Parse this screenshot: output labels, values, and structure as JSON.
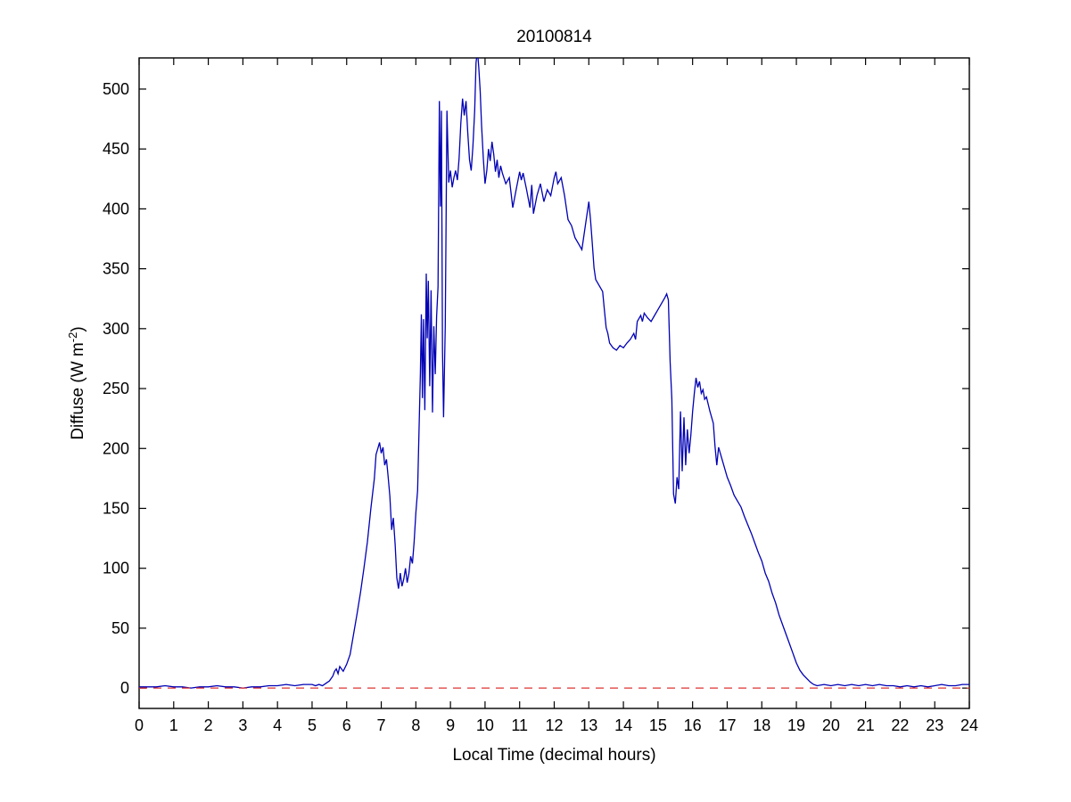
{
  "chart_data": {
    "type": "line",
    "title": "20100814",
    "xlabel": "Local Time (decimal hours)",
    "ylabel": "Diffuse (W m^-2)",
    "ylabel_parts": {
      "prefix": "Diffuse (W m",
      "sup": "-2",
      "suffix": ")"
    },
    "xlim": [
      0,
      24
    ],
    "ylim": [
      -17,
      526
    ],
    "xticks": [
      0,
      1,
      2,
      3,
      4,
      5,
      6,
      7,
      8,
      9,
      10,
      11,
      12,
      13,
      14,
      15,
      16,
      17,
      18,
      19,
      20,
      21,
      22,
      23,
      24
    ],
    "yticks": [
      0,
      50,
      100,
      150,
      200,
      250,
      300,
      350,
      400,
      450,
      500
    ],
    "grid": false,
    "legend": null,
    "colors": {
      "diffuse_line": "#0000b4",
      "zero_line": "#dd3333",
      "axes": "#000000"
    },
    "series": [
      {
        "name": "diffuse",
        "color": "#0000b4",
        "style": "solid",
        "points": [
          [
            0,
            1
          ],
          [
            0.25,
            1
          ],
          [
            0.5,
            1
          ],
          [
            0.75,
            2
          ],
          [
            1,
            1
          ],
          [
            1.25,
            1
          ],
          [
            1.5,
            0
          ],
          [
            1.75,
            1
          ],
          [
            2,
            1
          ],
          [
            2.25,
            2
          ],
          [
            2.5,
            1
          ],
          [
            2.75,
            1
          ],
          [
            3,
            0
          ],
          [
            3.25,
            1
          ],
          [
            3.5,
            1
          ],
          [
            3.75,
            2
          ],
          [
            4,
            2
          ],
          [
            4.25,
            3
          ],
          [
            4.5,
            2
          ],
          [
            4.75,
            3
          ],
          [
            5,
            3
          ],
          [
            5.1,
            2
          ],
          [
            5.2,
            3
          ],
          [
            5.3,
            2
          ],
          [
            5.4,
            4
          ],
          [
            5.5,
            6
          ],
          [
            5.6,
            10
          ],
          [
            5.65,
            14
          ],
          [
            5.7,
            16
          ],
          [
            5.75,
            12
          ],
          [
            5.8,
            18
          ],
          [
            5.85,
            16
          ],
          [
            5.9,
            14
          ],
          [
            6,
            20
          ],
          [
            6.1,
            28
          ],
          [
            6.2,
            45
          ],
          [
            6.3,
            62
          ],
          [
            6.4,
            80
          ],
          [
            6.5,
            100
          ],
          [
            6.6,
            122
          ],
          [
            6.7,
            150
          ],
          [
            6.8,
            175
          ],
          [
            6.85,
            195
          ],
          [
            6.9,
            200
          ],
          [
            6.95,
            205
          ],
          [
            7,
            196
          ],
          [
            7.05,
            201
          ],
          [
            7.1,
            186
          ],
          [
            7.15,
            191
          ],
          [
            7.2,
            176
          ],
          [
            7.25,
            160
          ],
          [
            7.3,
            132
          ],
          [
            7.35,
            142
          ],
          [
            7.4,
            120
          ],
          [
            7.45,
            92
          ],
          [
            7.5,
            83
          ],
          [
            7.55,
            96
          ],
          [
            7.6,
            85
          ],
          [
            7.65,
            91
          ],
          [
            7.7,
            100
          ],
          [
            7.75,
            88
          ],
          [
            7.8,
            96
          ],
          [
            7.85,
            110
          ],
          [
            7.9,
            104
          ],
          [
            7.95,
            122
          ],
          [
            8,
            146
          ],
          [
            8.05,
            165
          ],
          [
            8.1,
            225
          ],
          [
            8.13,
            262
          ],
          [
            8.16,
            312
          ],
          [
            8.19,
            242
          ],
          [
            8.22,
            308
          ],
          [
            8.26,
            232
          ],
          [
            8.3,
            346
          ],
          [
            8.33,
            292
          ],
          [
            8.36,
            340
          ],
          [
            8.4,
            252
          ],
          [
            8.44,
            332
          ],
          [
            8.48,
            230
          ],
          [
            8.52,
            302
          ],
          [
            8.56,
            262
          ],
          [
            8.6,
            310
          ],
          [
            8.64,
            335
          ],
          [
            8.68,
            490
          ],
          [
            8.71,
            402
          ],
          [
            8.74,
            482
          ],
          [
            8.77,
            282
          ],
          [
            8.8,
            226
          ],
          [
            8.85,
            302
          ],
          [
            8.9,
            482
          ],
          [
            8.95,
            422
          ],
          [
            9,
            432
          ],
          [
            9.05,
            418
          ],
          [
            9.1,
            426
          ],
          [
            9.15,
            432
          ],
          [
            9.2,
            424
          ],
          [
            9.25,
            442
          ],
          [
            9.3,
            472
          ],
          [
            9.35,
            492
          ],
          [
            9.4,
            478
          ],
          [
            9.45,
            490
          ],
          [
            9.5,
            464
          ],
          [
            9.55,
            441
          ],
          [
            9.6,
            432
          ],
          [
            9.65,
            452
          ],
          [
            9.7,
            482
          ],
          [
            9.74,
            522
          ],
          [
            9.78,
            532
          ],
          [
            9.82,
            518
          ],
          [
            9.86,
            498
          ],
          [
            9.9,
            470
          ],
          [
            9.95,
            442
          ],
          [
            10,
            421
          ],
          [
            10.05,
            432
          ],
          [
            10.1,
            450
          ],
          [
            10.15,
            440
          ],
          [
            10.2,
            456
          ],
          [
            10.25,
            446
          ],
          [
            10.3,
            431
          ],
          [
            10.35,
            441
          ],
          [
            10.4,
            426
          ],
          [
            10.45,
            436
          ],
          [
            10.5,
            430
          ],
          [
            10.6,
            421
          ],
          [
            10.7,
            426
          ],
          [
            10.8,
            401
          ],
          [
            10.9,
            416
          ],
          [
            11,
            431
          ],
          [
            11.05,
            424
          ],
          [
            11.1,
            430
          ],
          [
            11.2,
            416
          ],
          [
            11.3,
            401
          ],
          [
            11.35,
            420
          ],
          [
            11.4,
            396
          ],
          [
            11.5,
            411
          ],
          [
            11.6,
            421
          ],
          [
            11.7,
            406
          ],
          [
            11.8,
            416
          ],
          [
            11.9,
            411
          ],
          [
            12,
            426
          ],
          [
            12.05,
            431
          ],
          [
            12.1,
            421
          ],
          [
            12.2,
            426
          ],
          [
            12.3,
            411
          ],
          [
            12.4,
            391
          ],
          [
            12.5,
            386
          ],
          [
            12.6,
            376
          ],
          [
            12.7,
            371
          ],
          [
            12.8,
            366
          ],
          [
            12.9,
            386
          ],
          [
            13,
            406
          ],
          [
            13.05,
            391
          ],
          [
            13.1,
            371
          ],
          [
            13.15,
            351
          ],
          [
            13.2,
            341
          ],
          [
            13.3,
            336
          ],
          [
            13.4,
            331
          ],
          [
            13.45,
            316
          ],
          [
            13.5,
            301
          ],
          [
            13.55,
            296
          ],
          [
            13.6,
            288
          ],
          [
            13.7,
            284
          ],
          [
            13.8,
            282
          ],
          [
            13.9,
            286
          ],
          [
            14,
            284
          ],
          [
            14.1,
            288
          ],
          [
            14.2,
            291
          ],
          [
            14.3,
            296
          ],
          [
            14.35,
            291
          ],
          [
            14.4,
            306
          ],
          [
            14.5,
            311
          ],
          [
            14.55,
            306
          ],
          [
            14.6,
            313
          ],
          [
            14.7,
            309
          ],
          [
            14.8,
            306
          ],
          [
            14.9,
            311
          ],
          [
            15,
            316
          ],
          [
            15.1,
            321
          ],
          [
            15.2,
            326
          ],
          [
            15.25,
            329
          ],
          [
            15.3,
            324
          ],
          [
            15.35,
            272
          ],
          [
            15.4,
            241
          ],
          [
            15.45,
            162
          ],
          [
            15.5,
            154
          ],
          [
            15.55,
            176
          ],
          [
            15.6,
            166
          ],
          [
            15.65,
            231
          ],
          [
            15.7,
            181
          ],
          [
            15.75,
            226
          ],
          [
            15.8,
            186
          ],
          [
            15.85,
            216
          ],
          [
            15.9,
            196
          ],
          [
            15.95,
            211
          ],
          [
            16,
            231
          ],
          [
            16.05,
            246
          ],
          [
            16.1,
            259
          ],
          [
            16.15,
            251
          ],
          [
            16.2,
            256
          ],
          [
            16.25,
            246
          ],
          [
            16.3,
            249
          ],
          [
            16.35,
            241
          ],
          [
            16.4,
            243
          ],
          [
            16.5,
            231
          ],
          [
            16.6,
            221
          ],
          [
            16.65,
            201
          ],
          [
            16.7,
            186
          ],
          [
            16.75,
            201
          ],
          [
            16.8,
            196
          ],
          [
            16.9,
            186
          ],
          [
            17,
            176
          ],
          [
            17.1,
            169
          ],
          [
            17.2,
            161
          ],
          [
            17.3,
            156
          ],
          [
            17.4,
            151
          ],
          [
            17.5,
            143
          ],
          [
            17.6,
            136
          ],
          [
            17.7,
            129
          ],
          [
            17.8,
            121
          ],
          [
            17.9,
            113
          ],
          [
            18,
            106
          ],
          [
            18.1,
            96
          ],
          [
            18.2,
            89
          ],
          [
            18.3,
            79
          ],
          [
            18.4,
            71
          ],
          [
            18.5,
            61
          ],
          [
            18.6,
            53
          ],
          [
            18.7,
            45
          ],
          [
            18.8,
            37
          ],
          [
            18.9,
            29
          ],
          [
            19,
            21
          ],
          [
            19.1,
            15
          ],
          [
            19.2,
            11
          ],
          [
            19.3,
            8
          ],
          [
            19.4,
            5
          ],
          [
            19.5,
            3
          ],
          [
            19.6,
            2
          ],
          [
            19.8,
            3
          ],
          [
            20,
            2
          ],
          [
            20.2,
            3
          ],
          [
            20.4,
            2
          ],
          [
            20.6,
            3
          ],
          [
            20.8,
            2
          ],
          [
            21,
            3
          ],
          [
            21.2,
            2
          ],
          [
            21.4,
            3
          ],
          [
            21.6,
            2
          ],
          [
            21.8,
            2
          ],
          [
            22,
            1
          ],
          [
            22.2,
            2
          ],
          [
            22.4,
            1
          ],
          [
            22.6,
            2
          ],
          [
            22.8,
            1
          ],
          [
            23,
            2
          ],
          [
            23.2,
            3
          ],
          [
            23.4,
            2
          ],
          [
            23.6,
            2
          ],
          [
            23.8,
            3
          ],
          [
            24,
            3
          ]
        ]
      },
      {
        "name": "zero-reference",
        "color": "#dd3333",
        "style": "dashed",
        "points": [
          [
            0,
            0
          ],
          [
            24,
            0
          ]
        ]
      }
    ]
  }
}
